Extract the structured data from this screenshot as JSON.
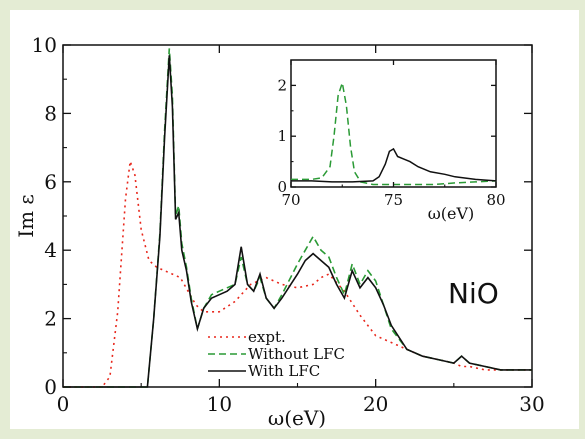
{
  "chart_data": [
    {
      "type": "line",
      "xlabel": "ω(eV)",
      "ylabel": "Im ε",
      "xlim": [
        0,
        30
      ],
      "ylim": [
        0,
        10
      ],
      "xticks": [
        "0",
        "10",
        "20",
        "30"
      ],
      "yticks": [
        "0",
        "2",
        "4",
        "6",
        "8",
        "10"
      ],
      "annotation": "NiO",
      "legend_position": "bottom-center",
      "series": [
        {
          "name": "expt.",
          "color": "#e8271c",
          "style": "dotted",
          "x": [
            0,
            2.5,
            3.0,
            3.5,
            4.0,
            4.3,
            4.6,
            5.0,
            5.5,
            6.0,
            6.5,
            7.0,
            7.5,
            8.0,
            8.5,
            9.0,
            10.0,
            11.0,
            12.0,
            13.0,
            14.0,
            15.0,
            16.0,
            16.5,
            17.0,
            18.0,
            19.0,
            20.0,
            21.0,
            22.0,
            23.0,
            24.0,
            25.0,
            25.5,
            26.0,
            27.0,
            28.0,
            30.0
          ],
          "y": [
            0,
            0,
            0.3,
            2.2,
            5.5,
            6.6,
            6.2,
            4.6,
            3.7,
            3.5,
            3.4,
            3.3,
            3.2,
            2.8,
            2.4,
            2.2,
            2.2,
            2.5,
            3.0,
            3.2,
            3.0,
            2.9,
            3.0,
            3.2,
            3.3,
            2.8,
            2.1,
            1.5,
            1.3,
            1.1,
            0.9,
            0.8,
            0.7,
            0.6,
            0.6,
            0.5,
            0.5,
            0.5
          ]
        },
        {
          "name": "Without LFC",
          "color": "#2a9a35",
          "style": "dashed",
          "x": [
            0,
            5.4,
            5.8,
            6.2,
            6.5,
            6.8,
            7.0,
            7.2,
            7.4,
            7.6,
            7.9,
            8.2,
            8.6,
            9.0,
            9.5,
            10.0,
            10.5,
            11.0,
            11.4,
            11.8,
            12.2,
            12.6,
            13.0,
            13.5,
            14.0,
            15.0,
            15.5,
            16.0,
            16.5,
            17.0,
            17.5,
            18.0,
            18.5,
            19.0,
            19.5,
            20.0,
            20.5,
            21.0,
            22.0,
            23.0,
            24.0,
            25.0,
            25.5,
            26.0,
            27.0,
            28.0,
            30.0
          ],
          "y": [
            0,
            0,
            2.0,
            4.5,
            7.5,
            9.9,
            8.5,
            5.0,
            5.3,
            4.2,
            3.5,
            2.6,
            1.7,
            2.3,
            2.7,
            2.8,
            2.9,
            3.0,
            3.8,
            3.0,
            2.8,
            3.2,
            2.6,
            2.3,
            2.7,
            3.6,
            4.0,
            4.4,
            4.0,
            3.8,
            3.2,
            2.7,
            3.6,
            3.0,
            3.4,
            3.1,
            2.4,
            1.7,
            1.1,
            0.9,
            0.8,
            0.7,
            0.9,
            0.7,
            0.6,
            0.5,
            0.5
          ]
        },
        {
          "name": "With LFC",
          "color": "#111111",
          "style": "solid",
          "x": [
            0,
            5.4,
            5.8,
            6.2,
            6.5,
            6.8,
            7.0,
            7.2,
            7.4,
            7.6,
            7.9,
            8.2,
            8.6,
            9.0,
            9.5,
            10.0,
            10.5,
            11.0,
            11.4,
            11.8,
            12.2,
            12.6,
            13.0,
            13.5,
            14.0,
            15.0,
            15.5,
            16.0,
            16.5,
            17.0,
            17.5,
            18.0,
            18.5,
            19.0,
            19.5,
            20.0,
            20.5,
            21.0,
            22.0,
            23.0,
            24.0,
            25.0,
            25.5,
            26.0,
            27.0,
            28.0,
            30.0
          ],
          "y": [
            0,
            0,
            2.0,
            4.4,
            7.3,
            9.7,
            8.2,
            4.9,
            5.1,
            4.0,
            3.4,
            2.5,
            1.7,
            2.3,
            2.6,
            2.7,
            2.8,
            3.0,
            4.1,
            3.0,
            2.8,
            3.3,
            2.6,
            2.3,
            2.6,
            3.3,
            3.7,
            3.9,
            3.7,
            3.5,
            3.0,
            2.6,
            3.4,
            2.9,
            3.2,
            2.9,
            2.4,
            1.8,
            1.1,
            0.9,
            0.8,
            0.7,
            0.9,
            0.7,
            0.6,
            0.5,
            0.5
          ]
        }
      ]
    },
    {
      "type": "line",
      "xlabel": "ω(eV)",
      "ylabel": "",
      "xlim": [
        70,
        80
      ],
      "ylim": [
        0,
        2.5
      ],
      "xticks": [
        "70",
        "75",
        "80"
      ],
      "yticks": [
        "0",
        "1",
        "2"
      ],
      "series": [
        {
          "name": "Without LFC",
          "color": "#2a9a35",
          "style": "dashed",
          "x": [
            70,
            71.0,
            71.5,
            71.9,
            72.1,
            72.3,
            72.5,
            72.7,
            72.9,
            73.1,
            73.4,
            74.0,
            74.5,
            75.0,
            76.0,
            77.0,
            78.0,
            79.0,
            80.0
          ],
          "y": [
            0.15,
            0.15,
            0.18,
            0.4,
            1.0,
            1.8,
            2.05,
            1.6,
            0.8,
            0.3,
            0.1,
            0.05,
            0.05,
            0.05,
            0.05,
            0.05,
            0.08,
            0.1,
            0.12
          ]
        },
        {
          "name": "With LFC",
          "color": "#111111",
          "style": "solid",
          "x": [
            70,
            71.0,
            72.0,
            73.0,
            74.0,
            74.3,
            74.6,
            74.8,
            75.0,
            75.2,
            75.5,
            75.8,
            76.2,
            76.8,
            77.5,
            78.0,
            79.0,
            80.0
          ],
          "y": [
            0.12,
            0.12,
            0.1,
            0.1,
            0.12,
            0.2,
            0.45,
            0.7,
            0.75,
            0.6,
            0.55,
            0.5,
            0.4,
            0.3,
            0.25,
            0.2,
            0.15,
            0.12
          ]
        }
      ]
    }
  ]
}
